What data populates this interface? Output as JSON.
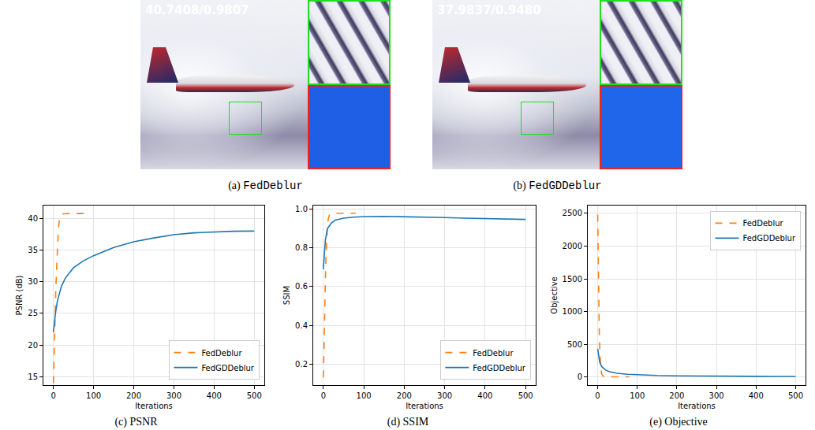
{
  "images": [
    {
      "caption": "(a) FedDeblur",
      "overlay_text": "40.7408/0.9807"
    },
    {
      "caption": "(b) FedGDDeblur",
      "overlay_text": "37.9837/0.9480"
    }
  ],
  "chart_data": [
    {
      "type": "line",
      "caption": "(c) PSNR",
      "x_label": "Iterations",
      "y_label": "PSNR (dB)",
      "series": [
        {
          "name": "FedDeblur",
          "color": "#ff7f0e",
          "line_style": "dashed",
          "x": [
            0,
            2,
            4,
            6,
            8,
            10,
            12,
            15,
            20,
            25,
            30,
            40,
            50,
            60,
            70,
            80
          ],
          "values": [
            14,
            18,
            24,
            29,
            33,
            36,
            38.2,
            39.8,
            40.5,
            40.7,
            40.74,
            40.74,
            40.74,
            40.74,
            40.74,
            40.74
          ]
        },
        {
          "name": "FedGDDeblur",
          "color": "#1f77b4",
          "line_style": "solid",
          "x": [
            0,
            5,
            10,
            20,
            30,
            50,
            75,
            100,
            150,
            200,
            250,
            300,
            350,
            400,
            450,
            500
          ],
          "values": [
            22,
            25,
            27,
            29.3,
            30.6,
            32.2,
            33.3,
            34.1,
            35.4,
            36.3,
            36.9,
            37.4,
            37.7,
            37.85,
            37.95,
            37.98
          ]
        }
      ],
      "xlim": [
        -25,
        525
      ],
      "xticks": [
        0,
        100,
        200,
        300,
        400,
        500
      ],
      "ylim": [
        13.7,
        42
      ],
      "yticks": [
        15,
        20,
        25,
        30,
        35,
        40
      ],
      "grid": true,
      "legend": "lower right"
    },
    {
      "type": "line",
      "caption": "(d) SSIM",
      "x_label": "Iterations",
      "y_label": "SSIM",
      "series": [
        {
          "name": "FedDeblur",
          "color": "#ff7f0e",
          "line_style": "dashed",
          "x": [
            0,
            2,
            4,
            6,
            8,
            10,
            12,
            15,
            20,
            25,
            30,
            40,
            50,
            60,
            70,
            80
          ],
          "values": [
            0.13,
            0.35,
            0.55,
            0.72,
            0.84,
            0.91,
            0.95,
            0.97,
            0.978,
            0.98,
            0.98,
            0.98,
            0.98,
            0.98,
            0.98,
            0.98
          ]
        },
        {
          "name": "FedGDDeblur",
          "color": "#1f77b4",
          "line_style": "solid",
          "x": [
            0,
            5,
            10,
            20,
            30,
            50,
            75,
            100,
            150,
            200,
            250,
            300,
            350,
            400,
            450,
            500
          ],
          "values": [
            0.69,
            0.84,
            0.9,
            0.93,
            0.945,
            0.955,
            0.96,
            0.963,
            0.964,
            0.963,
            0.961,
            0.958,
            0.955,
            0.952,
            0.95,
            0.948
          ]
        }
      ],
      "xlim": [
        -25,
        525
      ],
      "xticks": [
        0,
        100,
        200,
        300,
        400,
        500
      ],
      "ylim": [
        0.09,
        1.02
      ],
      "yticks": [
        0.2,
        0.4,
        0.6,
        0.8,
        {
          "value": 1,
          "label": "1.0"
        }
      ],
      "grid": true,
      "legend": "lower right"
    },
    {
      "type": "line",
      "caption": "(e) Objective",
      "x_label": "Iterations",
      "y_label": "Objective",
      "series": [
        {
          "name": "FedDeblur",
          "color": "#ff7f0e",
          "line_style": "dashed",
          "x": [
            0,
            2,
            4,
            6,
            8,
            10,
            12,
            15,
            20,
            25,
            30,
            40,
            50,
            60,
            70,
            80
          ],
          "values": [
            2480,
            1400,
            700,
            300,
            120,
            50,
            25,
            10,
            5,
            3,
            2,
            2,
            2,
            2,
            2,
            2
          ]
        },
        {
          "name": "FedGDDeblur",
          "color": "#1f77b4",
          "line_style": "solid",
          "x": [
            0,
            5,
            10,
            20,
            30,
            50,
            75,
            100,
            150,
            200,
            250,
            300,
            350,
            400,
            450,
            500
          ],
          "values": [
            430,
            230,
            160,
            105,
            80,
            55,
            40,
            32,
            22,
            17,
            13,
            11,
            10,
            9,
            8,
            8
          ]
        }
      ],
      "xlim": [
        -25,
        525
      ],
      "xticks": [
        0,
        100,
        200,
        300,
        400,
        500
      ],
      "ylim": [
        -125,
        2620
      ],
      "yticks": [
        0,
        500,
        1000,
        1500,
        2000,
        2500
      ],
      "grid": true,
      "legend": "upper right"
    }
  ]
}
